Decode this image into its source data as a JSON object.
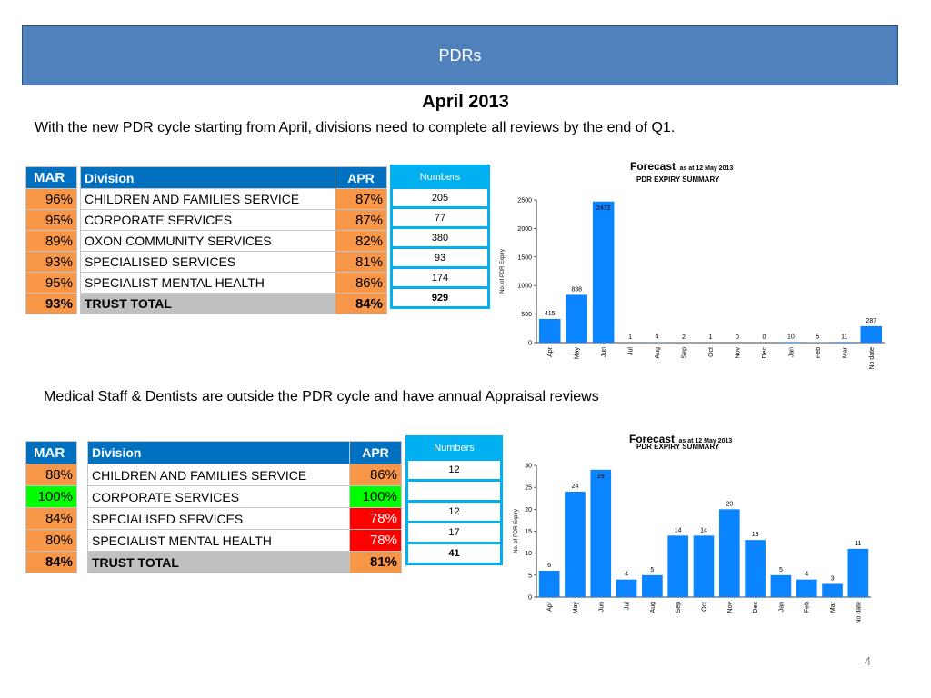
{
  "header": {
    "title": "PDRs"
  },
  "heading": "April 2013",
  "intro": "With the new PDR cycle starting from April, divisions need to complete all reviews by the end of Q1.",
  "intro2": "Medical Staff & Dentists are outside the PDR cycle and have annual Appraisal reviews",
  "page_number": "4",
  "colors": {
    "orange": "#f79646",
    "green": "#00ff00",
    "red": "#ff0000",
    "blue": "#0070c0",
    "bar": "#0a84ff"
  },
  "table1": {
    "mar_header": "MAR",
    "division_header": "Division",
    "apr_header": "APR",
    "numbers_header": "Numbers",
    "rows": [
      {
        "mar": "96%",
        "division": "CHILDREN AND FAMILIES SERVICE",
        "apr": "87%",
        "number": "205"
      },
      {
        "mar": "95%",
        "division": "CORPORATE SERVICES",
        "apr": "87%",
        "number": "77"
      },
      {
        "mar": "89%",
        "division": "OXON COMMUNITY SERVICES",
        "apr": "82%",
        "number": "380"
      },
      {
        "mar": "93%",
        "division": "SPECIALISED SERVICES",
        "apr": "81%",
        "number": "93"
      },
      {
        "mar": "95%",
        "division": "SPECIALIST MENTAL HEALTH",
        "apr": "86%",
        "number": "174"
      },
      {
        "mar": "93%",
        "division": "TRUST TOTAL",
        "apr": "84%",
        "number": "929"
      }
    ]
  },
  "table2": {
    "mar_header": "MAR",
    "division_header": "Division",
    "apr_header": "APR",
    "numbers_header": "Numbers",
    "rows": [
      {
        "mar": "88%",
        "division": "CHILDREN AND FAMILIES SERVICE",
        "apr": "86%",
        "number": "12"
      },
      {
        "mar": "100%",
        "division": "CORPORATE SERVICES",
        "apr": "100%",
        "number": ""
      },
      {
        "mar": "84%",
        "division": "SPECIALISED SERVICES",
        "apr": "78%",
        "number": "12"
      },
      {
        "mar": "80%",
        "division": "SPECIALIST MENTAL HEALTH",
        "apr": "78%",
        "number": "17"
      },
      {
        "mar": "84%",
        "division": "TRUST TOTAL",
        "apr": "81%",
        "number": "41"
      }
    ]
  },
  "chart_data": [
    {
      "type": "bar",
      "title": "Forecast",
      "title_note": "as at 12 May 2013",
      "subtitle": "PDR EXPIRY SUMMARY",
      "ylabel": "No. of PDR Expiry",
      "ylim": [
        0,
        2500
      ],
      "yticks": [
        0,
        500,
        1000,
        1500,
        2000,
        2500
      ],
      "categories": [
        "Apr",
        "May",
        "Jun",
        "Jul",
        "Aug",
        "Sep",
        "Oct",
        "Nov",
        "Dec",
        "Jan",
        "Feb",
        "Mar",
        "No date"
      ],
      "values": [
        415,
        838,
        2472,
        1,
        4,
        2,
        1,
        0,
        0,
        10,
        5,
        11,
        287
      ],
      "color": "#0a84ff"
    },
    {
      "type": "bar",
      "title": "Forecast",
      "title_note": "as at 12 May 2013",
      "subtitle": "PDR EXPIRY SUMMARY",
      "ylabel": "No. of PDR Expiry",
      "ylim": [
        0,
        30
      ],
      "yticks": [
        0,
        5,
        10,
        15,
        20,
        25,
        30
      ],
      "categories": [
        "Apr",
        "May",
        "Jun",
        "Jul",
        "Aug",
        "Sep",
        "Oct",
        "Nov",
        "Dec",
        "Jan",
        "Feb",
        "Mar",
        "No date"
      ],
      "values": [
        6,
        24,
        29,
        4,
        5,
        14,
        14,
        20,
        13,
        5,
        4,
        3,
        11
      ],
      "color": "#0a84ff"
    }
  ]
}
